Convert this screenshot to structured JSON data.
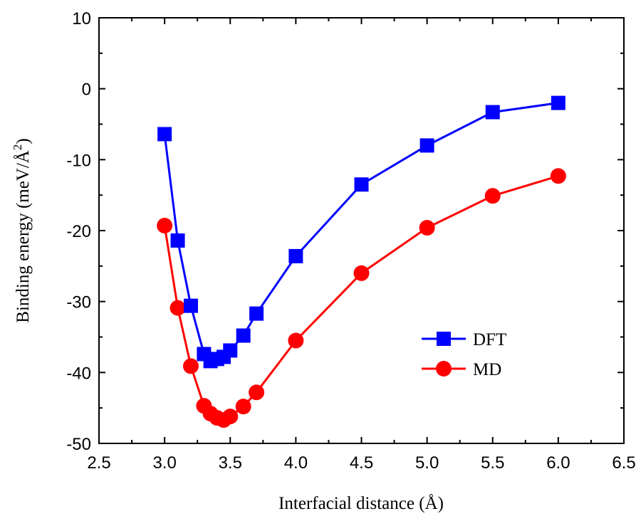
{
  "chart_data": {
    "type": "line",
    "title": "",
    "xlabel": "Interfacial distance (Å)",
    "ylabel": "Binding energy (meV/Å",
    "ylabel_superscript": "2",
    "ylabel_close": ")",
    "xlim": [
      2.5,
      6.5
    ],
    "ylim": [
      -50,
      10
    ],
    "xticks": [
      "2.5",
      "3.0",
      "3.5",
      "4.0",
      "4.5",
      "5.0",
      "5.5",
      "6.0",
      "6.5"
    ],
    "yticks": [
      "10",
      "0",
      "-10",
      "-20",
      "-30",
      "-40",
      "-50"
    ],
    "grid": false,
    "legend_position": "lower-right",
    "series": [
      {
        "name": "DFT",
        "color": "#0000ff",
        "marker": "square",
        "x": [
          3.0,
          3.1,
          3.2,
          3.3,
          3.35,
          3.4,
          3.45,
          3.5,
          3.6,
          3.7,
          4.0,
          4.5,
          5.0,
          5.5,
          6.0
        ],
        "y": [
          -6.4,
          -21.4,
          -30.6,
          -37.4,
          -38.4,
          -38.1,
          -37.8,
          -36.9,
          -34.8,
          -31.7,
          -23.6,
          -13.5,
          -8.0,
          -3.3,
          -2.0
        ]
      },
      {
        "name": "MD",
        "color": "#ff0000",
        "marker": "circle",
        "x": [
          3.0,
          3.1,
          3.2,
          3.3,
          3.35,
          3.4,
          3.45,
          3.5,
          3.6,
          3.7,
          4.0,
          4.5,
          5.0,
          5.5,
          6.0
        ],
        "y": [
          -19.3,
          -30.9,
          -39.1,
          -44.7,
          -45.8,
          -46.4,
          -46.7,
          -46.2,
          -44.8,
          -42.8,
          -35.5,
          -26.0,
          -19.6,
          -15.1,
          -12.3
        ]
      }
    ]
  }
}
